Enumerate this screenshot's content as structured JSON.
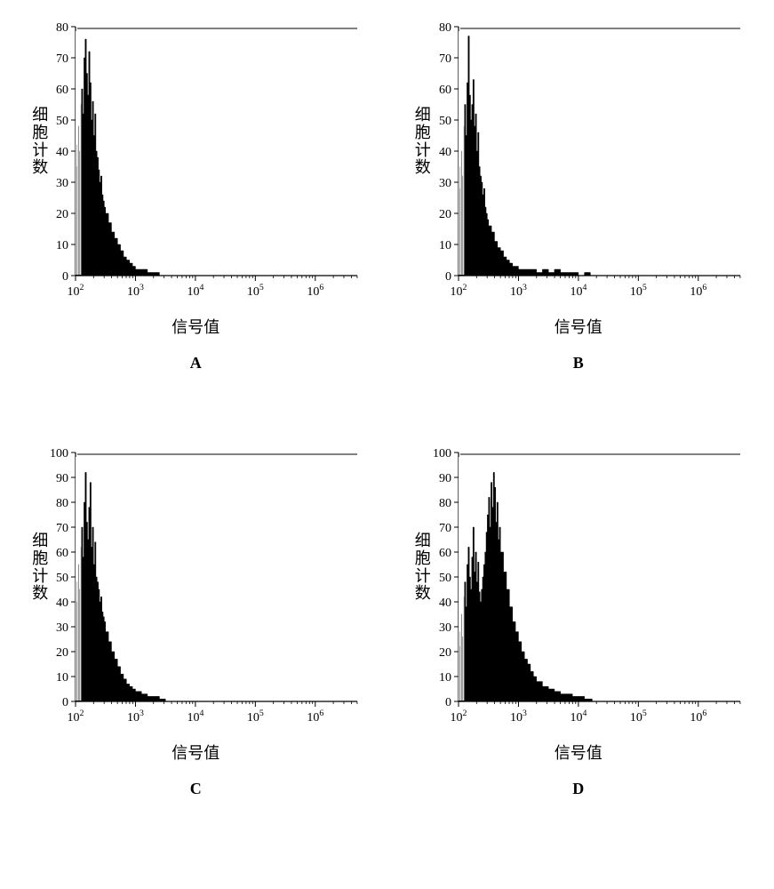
{
  "global": {
    "ylabel": "细胞计数",
    "xlabel": "信号值",
    "line_color": "#000000",
    "bg_color": "#ffffff",
    "axis_color": "#000000",
    "tick_font_size": 14,
    "label_font_size": 18,
    "x_log_min": 2,
    "x_log_max": 6.7,
    "x_tick_exponents": [
      2,
      3,
      4,
      5,
      6
    ]
  },
  "panels": [
    {
      "id": "A",
      "y_max": 80,
      "y_tick_step": 10,
      "histogram": {
        "bin_log_x": [
          2.0,
          2.02,
          2.04,
          2.06,
          2.08,
          2.1,
          2.12,
          2.14,
          2.16,
          2.18,
          2.2,
          2.22,
          2.24,
          2.26,
          2.28,
          2.3,
          2.32,
          2.34,
          2.36,
          2.38,
          2.4,
          2.42,
          2.44,
          2.46,
          2.48,
          2.5,
          2.55,
          2.6,
          2.65,
          2.7,
          2.75,
          2.8,
          2.85,
          2.9,
          2.95,
          3.0,
          3.1,
          3.2,
          3.3,
          3.4
        ],
        "bin_heights": [
          42,
          35,
          48,
          40,
          55,
          60,
          52,
          70,
          76,
          65,
          58,
          72,
          62,
          50,
          56,
          45,
          52,
          40,
          38,
          34,
          30,
          32,
          26,
          24,
          22,
          20,
          17,
          14,
          12,
          10,
          8,
          6,
          5,
          4,
          3,
          2,
          2,
          1,
          1,
          0
        ]
      }
    },
    {
      "id": "B",
      "y_max": 80,
      "y_tick_step": 10,
      "histogram": {
        "bin_log_x": [
          2.0,
          2.02,
          2.04,
          2.06,
          2.08,
          2.1,
          2.12,
          2.14,
          2.16,
          2.18,
          2.2,
          2.22,
          2.24,
          2.26,
          2.28,
          2.3,
          2.32,
          2.34,
          2.36,
          2.38,
          2.4,
          2.42,
          2.44,
          2.46,
          2.48,
          2.5,
          2.55,
          2.6,
          2.65,
          2.7,
          2.75,
          2.8,
          2.85,
          2.9,
          2.95,
          3.0,
          3.1,
          3.2,
          3.3,
          3.4,
          3.5,
          3.6,
          3.7,
          3.8,
          3.9,
          4.0,
          4.1,
          4.2
        ],
        "bin_heights": [
          35,
          28,
          40,
          32,
          48,
          55,
          45,
          62,
          77,
          58,
          50,
          55,
          63,
          48,
          52,
          40,
          46,
          35,
          32,
          30,
          26,
          28,
          22,
          20,
          18,
          16,
          14,
          11,
          9,
          8,
          6,
          5,
          4,
          3,
          3,
          2,
          2,
          2,
          1,
          2,
          1,
          2,
          1,
          1,
          1,
          0,
          1,
          0
        ]
      }
    },
    {
      "id": "C",
      "y_max": 100,
      "y_tick_step": 10,
      "histogram": {
        "bin_log_x": [
          2.0,
          2.02,
          2.04,
          2.06,
          2.08,
          2.1,
          2.12,
          2.14,
          2.16,
          2.18,
          2.2,
          2.22,
          2.24,
          2.26,
          2.28,
          2.3,
          2.32,
          2.34,
          2.36,
          2.38,
          2.4,
          2.42,
          2.44,
          2.46,
          2.48,
          2.5,
          2.55,
          2.6,
          2.65,
          2.7,
          2.75,
          2.8,
          2.85,
          2.9,
          2.95,
          3.0,
          3.1,
          3.2,
          3.3,
          3.4,
          3.5
        ],
        "bin_heights": [
          48,
          40,
          55,
          45,
          62,
          70,
          58,
          80,
          92,
          72,
          65,
          78,
          88,
          62,
          70,
          55,
          64,
          50,
          48,
          45,
          40,
          42,
          36,
          34,
          32,
          28,
          24,
          20,
          17,
          14,
          11,
          9,
          7,
          6,
          5,
          4,
          3,
          2,
          2,
          1,
          0
        ]
      }
    },
    {
      "id": "D",
      "y_max": 100,
      "y_tick_step": 10,
      "histogram": {
        "bin_log_x": [
          2.0,
          2.02,
          2.04,
          2.06,
          2.08,
          2.1,
          2.12,
          2.14,
          2.16,
          2.18,
          2.2,
          2.22,
          2.24,
          2.26,
          2.28,
          2.3,
          2.32,
          2.34,
          2.36,
          2.38,
          2.4,
          2.42,
          2.44,
          2.46,
          2.48,
          2.5,
          2.52,
          2.54,
          2.56,
          2.58,
          2.6,
          2.62,
          2.64,
          2.66,
          2.68,
          2.7,
          2.75,
          2.8,
          2.85,
          2.9,
          2.95,
          3.0,
          3.05,
          3.1,
          3.15,
          3.2,
          3.25,
          3.3,
          3.4,
          3.5,
          3.6,
          3.7,
          3.8,
          3.9,
          4.0,
          4.1,
          4.2
        ],
        "bin_heights": [
          28,
          22,
          35,
          26,
          42,
          48,
          38,
          55,
          62,
          50,
          45,
          58,
          70,
          52,
          60,
          48,
          56,
          44,
          40,
          45,
          50,
          55,
          60,
          68,
          75,
          82,
          70,
          88,
          78,
          92,
          86,
          72,
          80,
          65,
          70,
          60,
          52,
          45,
          38,
          32,
          28,
          24,
          20,
          17,
          15,
          12,
          10,
          8,
          6,
          5,
          4,
          3,
          3,
          2,
          2,
          1,
          1
        ]
      }
    }
  ]
}
